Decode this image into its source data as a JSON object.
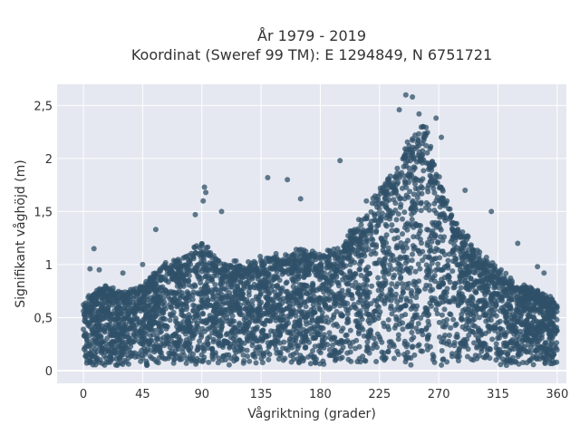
{
  "chart_data": {
    "type": "scatter",
    "title": "År 1979 - 2019",
    "subtitle": "Koordinat (Sweref 99 TM): E 1294849, N 6751721",
    "xlabel": "Vågriktning (grader)",
    "ylabel": "Signifikant våghöjd (m)",
    "xlim": [
      -20,
      367
    ],
    "ylim": [
      -0.12,
      2.7
    ],
    "x_ticks": [
      0,
      45,
      90,
      135,
      180,
      225,
      270,
      315,
      360
    ],
    "x_tick_labels": [
      "0",
      "45",
      "90",
      "135",
      "180",
      "225",
      "270",
      "315",
      "360"
    ],
    "y_ticks": [
      0,
      0.5,
      1,
      1.5,
      2,
      2.5
    ],
    "y_tick_labels": [
      "0",
      "0,5",
      "1",
      "1,5",
      "2",
      "2,5"
    ],
    "grid": true,
    "legend": "none",
    "colors": {
      "marker": "#2f5068",
      "plot_background": "#e5e8f0",
      "grid": "#ffffff"
    },
    "envelope": {
      "x": [
        0,
        15,
        30,
        45,
        60,
        75,
        90,
        105,
        120,
        135,
        150,
        165,
        180,
        195,
        210,
        225,
        240,
        250,
        260,
        270,
        285,
        300,
        315,
        330,
        345,
        360
      ],
      "y_max": [
        0.65,
        0.78,
        0.74,
        0.8,
        0.98,
        1.05,
        1.2,
        1.02,
        1.0,
        1.05,
        1.08,
        1.12,
        1.08,
        1.15,
        1.4,
        1.7,
        1.95,
        2.2,
        2.25,
        1.8,
        1.35,
        1.1,
        0.95,
        0.8,
        0.75,
        0.65
      ],
      "y_min": 0.05
    },
    "outliers": [
      {
        "x": 5,
        "y": 0.96
      },
      {
        "x": 8,
        "y": 1.15
      },
      {
        "x": 12,
        "y": 0.95
      },
      {
        "x": 30,
        "y": 0.92
      },
      {
        "x": 45,
        "y": 1.0
      },
      {
        "x": 55,
        "y": 1.33
      },
      {
        "x": 85,
        "y": 1.47
      },
      {
        "x": 92,
        "y": 1.73
      },
      {
        "x": 93,
        "y": 1.68
      },
      {
        "x": 91,
        "y": 1.6
      },
      {
        "x": 105,
        "y": 1.5
      },
      {
        "x": 140,
        "y": 1.82
      },
      {
        "x": 155,
        "y": 1.8
      },
      {
        "x": 165,
        "y": 1.62
      },
      {
        "x": 195,
        "y": 1.98
      },
      {
        "x": 215,
        "y": 1.6
      },
      {
        "x": 240,
        "y": 2.46
      },
      {
        "x": 245,
        "y": 2.6
      },
      {
        "x": 250,
        "y": 2.58
      },
      {
        "x": 255,
        "y": 2.42
      },
      {
        "x": 268,
        "y": 2.38
      },
      {
        "x": 272,
        "y": 2.2
      },
      {
        "x": 290,
        "y": 1.7
      },
      {
        "x": 310,
        "y": 1.5
      },
      {
        "x": 330,
        "y": 1.2
      },
      {
        "x": 345,
        "y": 0.98
      },
      {
        "x": 350,
        "y": 0.92
      }
    ]
  }
}
